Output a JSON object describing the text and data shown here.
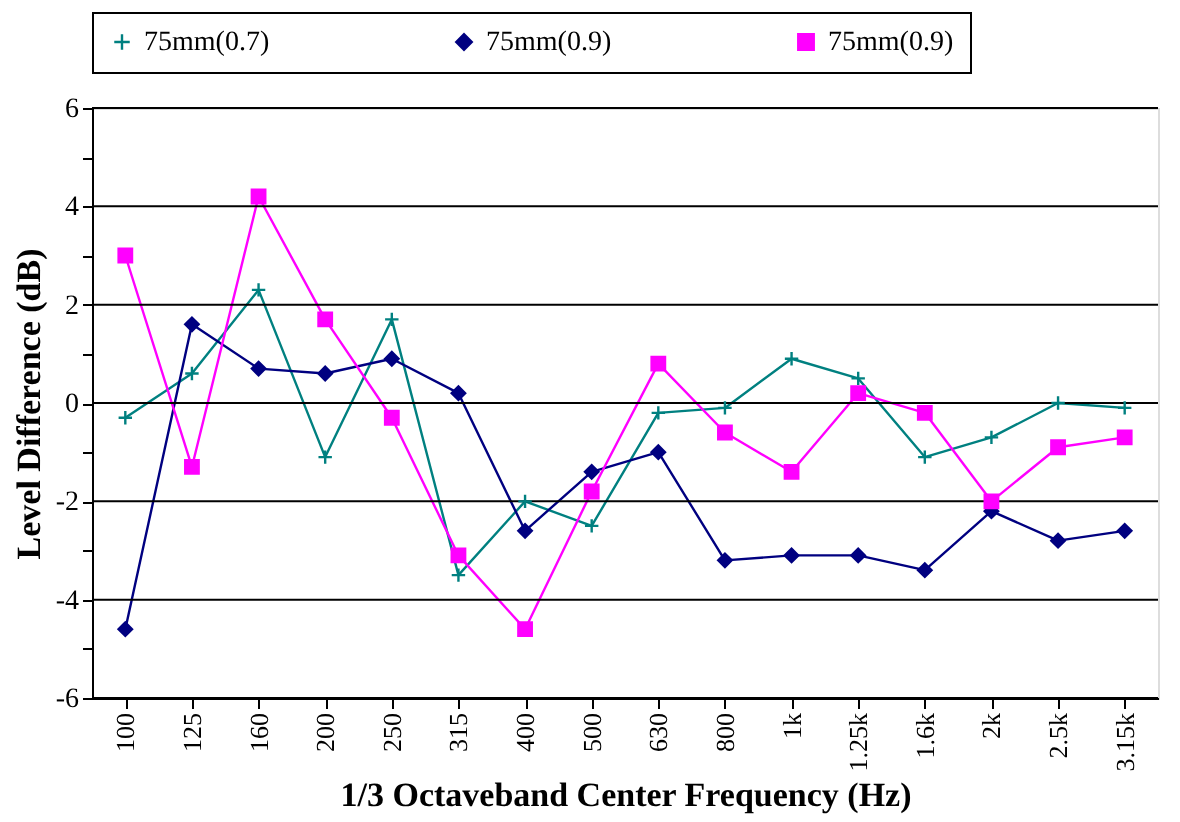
{
  "chart_data": {
    "type": "line",
    "xlabel": "1/3 Octaveband Center Frequency (Hz)",
    "ylabel": "Level Difference (dB)",
    "categories": [
      "100",
      "125",
      "160",
      "200",
      "250",
      "315",
      "400",
      "500",
      "630",
      "800",
      "1k",
      "1.25k",
      "1.6k",
      "2k",
      "2.5k",
      "3.15k"
    ],
    "series": [
      {
        "name": "75mm(0.7)",
        "color": "#008080",
        "marker": "cross",
        "values": [
          -0.3,
          0.6,
          2.3,
          -1.1,
          1.7,
          -3.5,
          -2.0,
          -2.5,
          -0.2,
          -0.1,
          0.9,
          0.5,
          -1.1,
          -0.7,
          0.0,
          -0.1
        ]
      },
      {
        "name": "75mm(0.9)",
        "color": "#000080",
        "marker": "diamond",
        "values": [
          -4.6,
          1.6,
          0.7,
          0.6,
          0.9,
          0.2,
          -2.6,
          -1.4,
          -1.0,
          -3.2,
          -3.1,
          -3.1,
          -3.4,
          -2.2,
          -2.8,
          -2.6
        ]
      },
      {
        "name": "75mm(0.9)",
        "color": "#ff00ff",
        "marker": "square",
        "values": [
          3.0,
          -1.3,
          4.2,
          1.7,
          -0.3,
          -3.1,
          -4.6,
          -1.8,
          0.8,
          -0.6,
          -1.4,
          0.2,
          -0.2,
          -2.0,
          -0.9,
          -0.7
        ]
      }
    ],
    "ylim": [
      -6,
      6
    ],
    "yticks": [
      -6,
      {
        "value": -5,
        "label": null
      },
      -4,
      {
        "value": -3,
        "label": null
      },
      -2,
      {
        "value": -1,
        "label": null
      },
      0,
      {
        "value": 1,
        "label": null
      },
      2,
      {
        "value": 3,
        "label": null
      },
      4,
      {
        "value": 5,
        "label": null
      },
      6
    ],
    "grid": "y",
    "legend": "top",
    "line_style": "solid"
  }
}
